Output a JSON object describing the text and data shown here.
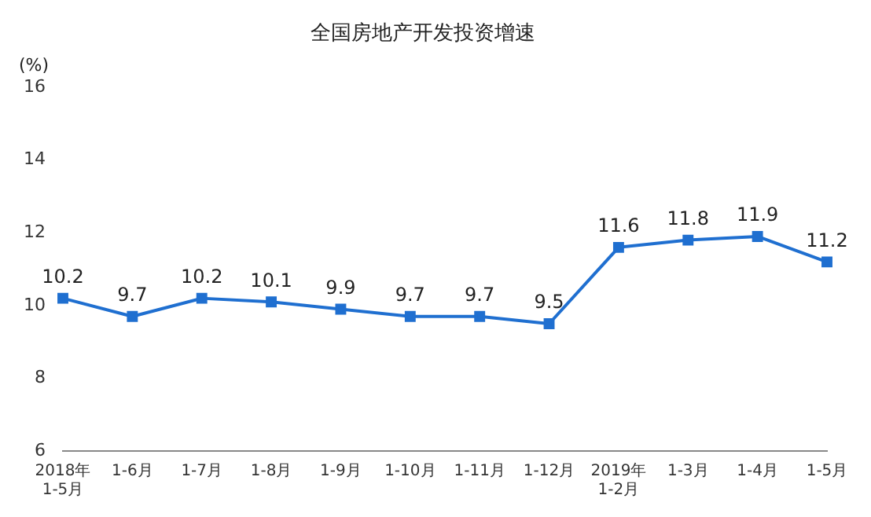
{
  "chart_data": {
    "type": "line",
    "title": "全国房地产开发投资增速",
    "ylabel": "(%)",
    "categories": [
      "2018年\n1-5月",
      "1-6月",
      "1-7月",
      "1-8月",
      "1-9月",
      "1-10月",
      "1-11月",
      "1-12月",
      "2019年\n1-2月",
      "1-3月",
      "1-4月",
      "1-5月"
    ],
    "series": [
      {
        "color": "#1f6fd0",
        "values": [
          10.2,
          9.7,
          10.2,
          10.1,
          9.9,
          9.7,
          9.7,
          9.5,
          11.6,
          11.8,
          11.9,
          11.2
        ]
      }
    ],
    "ylim": [
      6,
      16
    ],
    "yticks": [
      6,
      8,
      10,
      12,
      14,
      16
    ],
    "grid": false,
    "legend": false,
    "marker": "square",
    "line_style": "solid",
    "data_labels": true
  }
}
